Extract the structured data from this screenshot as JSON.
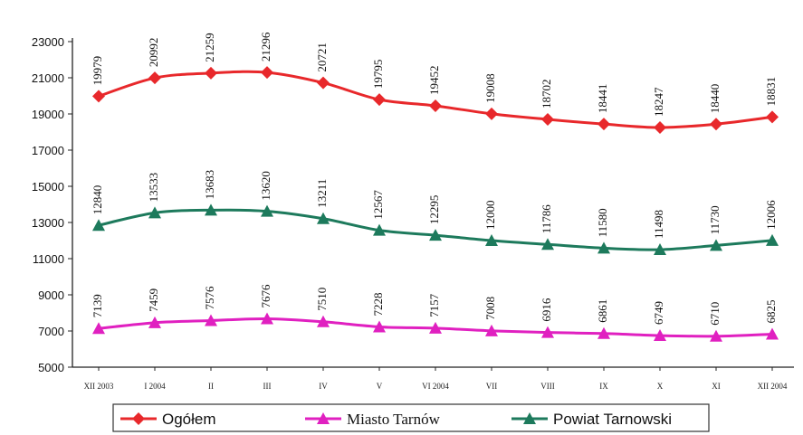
{
  "chart_data": {
    "type": "line",
    "categories": [
      "XII 2003",
      "I 2004",
      "II",
      "III",
      "IV",
      "V",
      "VI 2004",
      "VII",
      "VIII",
      "IX",
      "X",
      "XI",
      "XII 2004"
    ],
    "ylim": [
      5000,
      23000
    ],
    "yticks": [
      5000,
      7000,
      9000,
      11000,
      13000,
      15000,
      17000,
      19000,
      21000,
      23000
    ],
    "grid": false,
    "legend_position": "bottom",
    "series": [
      {
        "name": "Ogółem",
        "color": "#e8282b",
        "marker": "diamond",
        "values": [
          19979,
          20992,
          21259,
          21296,
          20721,
          19795,
          19452,
          19008,
          18702,
          18441,
          18247,
          18440,
          18831
        ]
      },
      {
        "name": "Miasto Tarnów",
        "color": "#e020c0",
        "marker": "triangle",
        "values": [
          7139,
          7459,
          7576,
          7676,
          7510,
          7228,
          7157,
          7008,
          6916,
          6861,
          6749,
          6710,
          6825
        ]
      },
      {
        "name": "Powiat Tarnowski",
        "color": "#1d7a5c",
        "marker": "triangle",
        "values": [
          12840,
          13533,
          13683,
          13620,
          13211,
          12567,
          12295,
          12000,
          11786,
          11580,
          11498,
          11730,
          12006
        ]
      }
    ]
  }
}
